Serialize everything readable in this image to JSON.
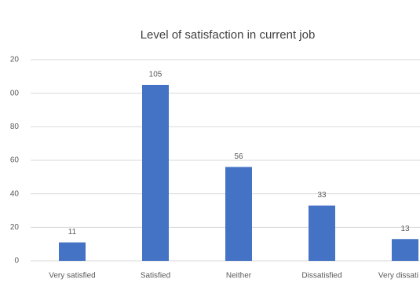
{
  "chart_data": {
    "type": "bar",
    "title": "Level of satisfaction in current job",
    "categories": [
      "Very satisfied",
      "Satisfied",
      "Neither",
      "Dissatisfied",
      "Very dissati"
    ],
    "values": [
      11,
      105,
      56,
      33,
      13
    ],
    "color": "#4472c4",
    "ylim": [
      0,
      120
    ],
    "yticks": [
      0,
      {
        "value": 20,
        "label": "20"
      },
      40,
      60,
      80,
      {
        "value": 100,
        "label": "00"
      },
      {
        "value": 120,
        "label": "20"
      }
    ],
    "grid": true
  }
}
